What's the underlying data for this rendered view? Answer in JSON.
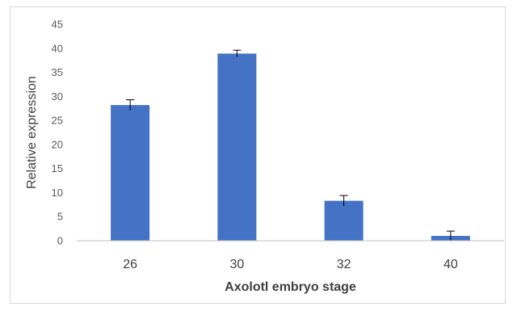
{
  "chart_data": {
    "type": "bar",
    "title": "",
    "xlabel": "Axolotl embryo stage",
    "ylabel": "Relative expression",
    "categories": [
      "26",
      "30",
      "32",
      "40"
    ],
    "values": [
      28.2,
      38.9,
      8.3,
      1.0
    ],
    "error": [
      1.1,
      0.7,
      1.1,
      1.0
    ],
    "ylim": [
      0,
      45
    ],
    "yticks": [
      0,
      5,
      10,
      15,
      20,
      25,
      30,
      35,
      40,
      45
    ],
    "bar_color": "#4472c4",
    "grid": false,
    "legend": "none"
  }
}
